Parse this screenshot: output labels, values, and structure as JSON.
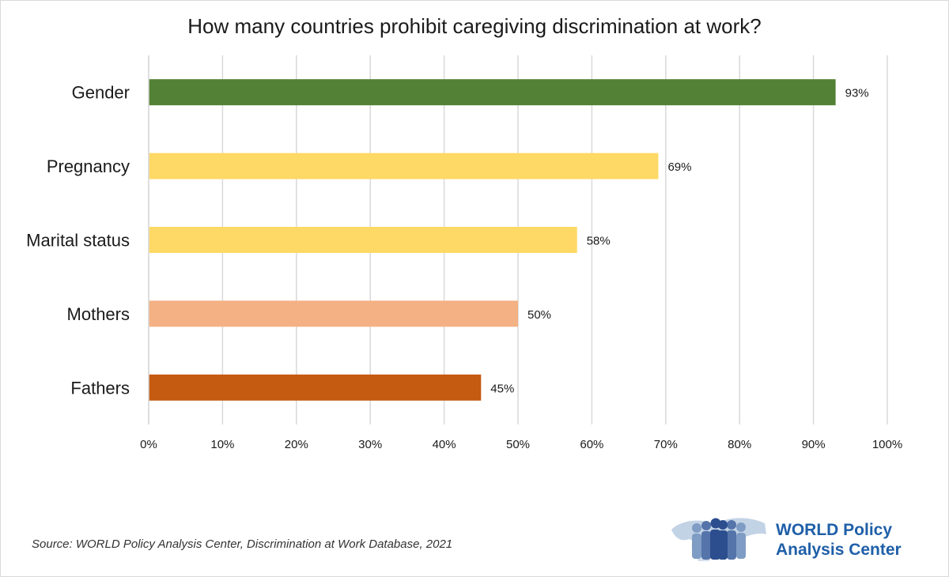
{
  "chart_data": {
    "type": "bar",
    "orientation": "horizontal",
    "title": "How many countries prohibit caregiving discrimination at work?",
    "categories": [
      "Gender",
      "Pregnancy",
      "Marital status",
      "Mothers",
      "Fathers"
    ],
    "values": [
      93,
      69,
      58,
      50,
      45
    ],
    "value_labels": [
      "93%",
      "69%",
      "58%",
      "50%",
      "45%"
    ],
    "bar_colors": [
      "#538135",
      "#FFD966",
      "#FFD966",
      "#F4B183",
      "#C55A11"
    ],
    "xlim": [
      0,
      100
    ],
    "x_ticks": [
      0,
      10,
      20,
      30,
      40,
      50,
      60,
      70,
      80,
      90,
      100
    ],
    "x_tick_labels": [
      "0%",
      "10%",
      "20%",
      "30%",
      "40%",
      "50%",
      "60%",
      "70%",
      "80%",
      "90%",
      "100%"
    ],
    "grid": true,
    "xlabel": "",
    "ylabel": ""
  },
  "source": "Source: WORLD Policy Analysis Center, Discrimination at Work Database, 2021",
  "logo": {
    "line1": "WORLD Policy",
    "line2": "Analysis Center",
    "text_color": "#1F5FA8"
  }
}
